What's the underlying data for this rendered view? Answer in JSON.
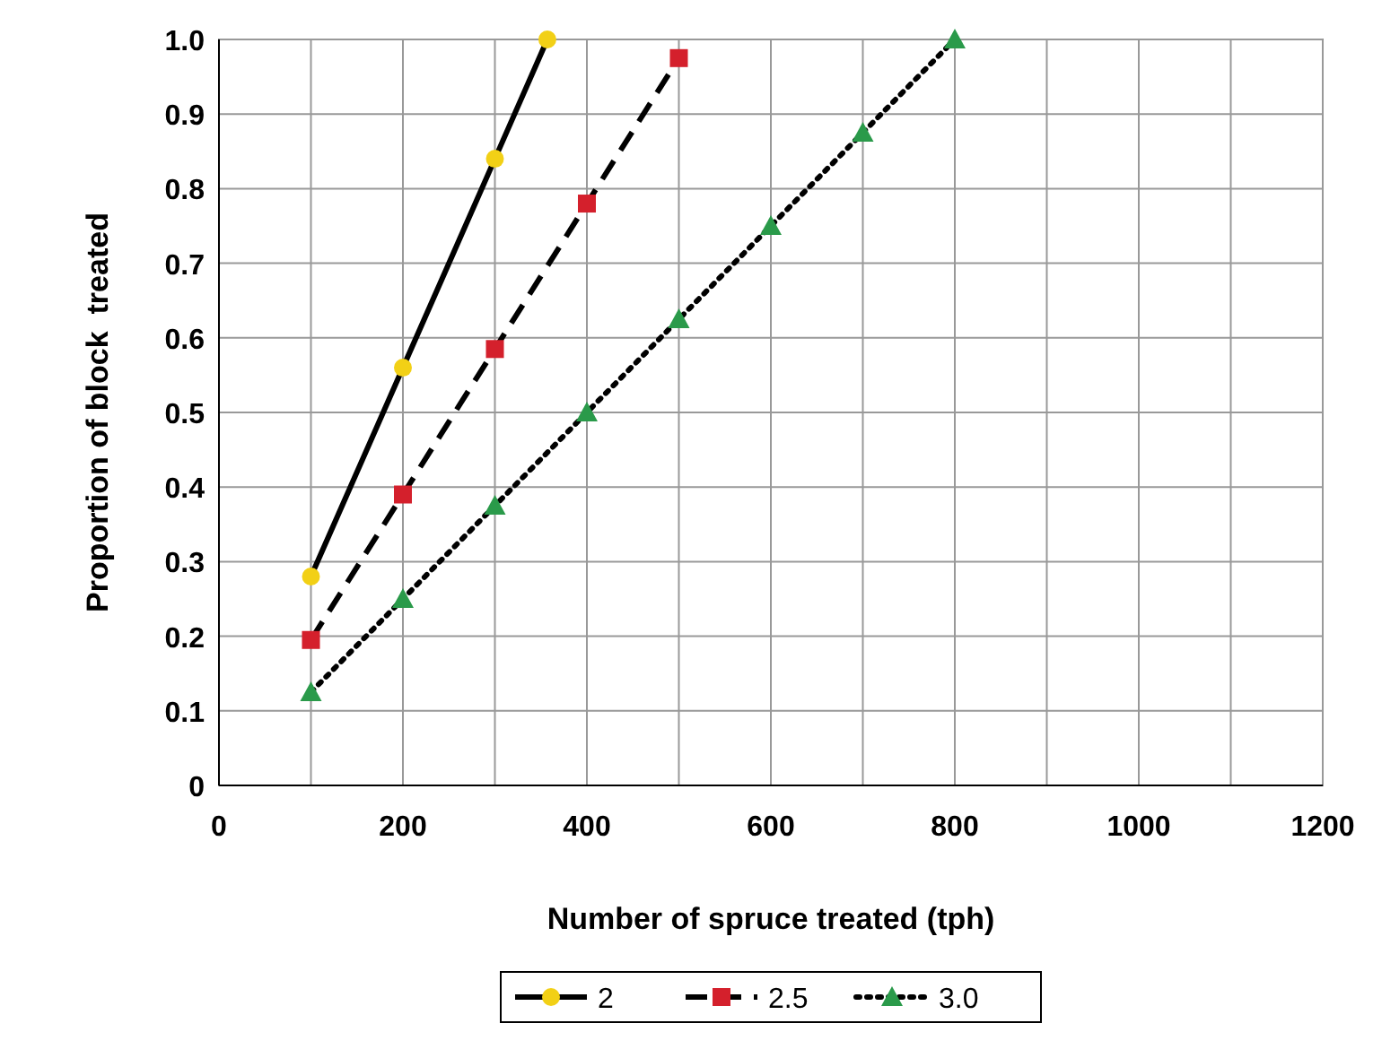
{
  "chart_data": {
    "type": "line",
    "xlabel": "Number of spruce treated (tph)",
    "ylabel": "Proportion of block  treated",
    "xlim": [
      0,
      1200
    ],
    "ylim": [
      0,
      1.0
    ],
    "xticks": [
      0,
      {
        "value": 100,
        "label": null
      },
      200,
      {
        "value": 300,
        "label": null
      },
      400,
      {
        "value": 500,
        "label": null
      },
      600,
      {
        "value": 700,
        "label": null
      },
      800,
      {
        "value": 900,
        "label": null
      },
      1000,
      {
        "value": 1100,
        "label": null
      },
      1200
    ],
    "yticks": [
      0,
      0.1,
      0.2,
      0.3,
      0.4,
      0.5,
      0.6,
      0.7,
      0.8,
      0.9,
      {
        "value": 1.0,
        "label": "1.0"
      }
    ],
    "grid": true,
    "legend": "bottom",
    "series": [
      {
        "name": "2",
        "color": "#f2d016",
        "x": [
          100,
          200,
          300,
          357
        ],
        "values": [
          0.28,
          0.56,
          0.84,
          1.0
        ],
        "line_style": "solid",
        "marker": "circle"
      },
      {
        "name": "2.5",
        "color": "#d4202c",
        "x": [
          100,
          200,
          300,
          400,
          500
        ],
        "values": [
          0.195,
          0.39,
          0.585,
          0.78,
          0.975
        ],
        "line_style": "dashed",
        "marker": "square"
      },
      {
        "name": "3.0",
        "color": "#2a9a4a",
        "x": [
          100,
          200,
          300,
          400,
          500,
          600,
          700,
          800
        ],
        "values": [
          0.125,
          0.25,
          0.375,
          0.5,
          0.625,
          0.75,
          0.875,
          1.0
        ],
        "line_style": "dotted",
        "marker": "triangle"
      }
    ]
  }
}
